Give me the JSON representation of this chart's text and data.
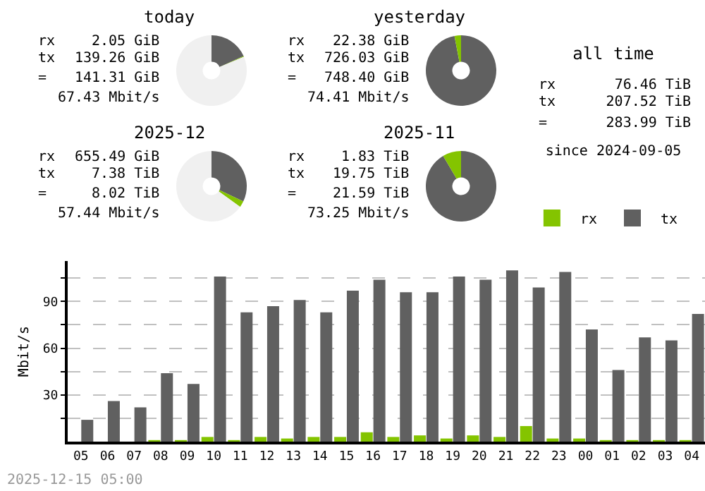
{
  "chart_data": [
    {
      "type": "donut",
      "title": "today",
      "categories": [
        null,
        null,
        null
      ],
      "values": [
        18.3,
        0.3,
        81.4
      ],
      "colors": [
        "#606060",
        "#84c400",
        "#f0f0f0"
      ],
      "annotations": [
        "rx",
        "2.05 GiB",
        "tx",
        "139.26 GiB",
        "=",
        "141.31 GiB",
        "67.43 Mbit/s"
      ]
    },
    {
      "type": "donut",
      "title": "yesterday",
      "categories": [
        null,
        null,
        null
      ],
      "values": [
        97,
        3,
        0
      ],
      "colors": [
        "#606060",
        "#84c400",
        "#f0f0f0"
      ],
      "annotations": [
        "rx",
        "22.38 GiB",
        "tx",
        "726.03 GiB",
        "=",
        "748.40 GiB",
        "74.41 Mbit/s"
      ]
    },
    {
      "type": "other",
      "title": "all time",
      "annotations": [
        "rx",
        "76.46 TiB",
        "tx",
        "207.52 TiB",
        "=",
        "283.99 TiB",
        "since 2024-09-05"
      ]
    },
    {
      "type": "donut",
      "title": "2025-12",
      "categories": [
        null,
        null,
        null
      ],
      "values": [
        32.1,
        2.8,
        65.1
      ],
      "colors": [
        "#606060",
        "#84c400",
        "#f0f0f0"
      ],
      "annotations": [
        "rx",
        "655.49 GiB",
        "tx",
        "7.38 TiB",
        "=",
        "8.02 TiB",
        "57.44 Mbit/s"
      ]
    },
    {
      "type": "donut",
      "title": "2025-11",
      "categories": [
        null,
        null,
        null
      ],
      "values": [
        91.5,
        8.5,
        0
      ],
      "colors": [
        "#606060",
        "#84c400",
        "#f0f0f0"
      ],
      "annotations": [
        "rx",
        "1.83 TiB",
        "tx",
        "19.75 TiB",
        "=",
        "21.59 TiB",
        "73.25 Mbit/s"
      ]
    },
    {
      "type": "bar",
      "ylabel": "Mbit/s",
      "categories": [
        "05",
        "06",
        "07",
        "08",
        "09",
        "10",
        "11",
        "12",
        "13",
        "14",
        "15",
        "16",
        "17",
        "18",
        "19",
        "20",
        "21",
        "22",
        "23",
        "00",
        "01",
        "02",
        "03",
        "04"
      ],
      "series": [
        {
          "name": "rx",
          "color": "#84c400",
          "values": [
            0,
            0,
            0,
            1,
            1,
            3,
            1,
            3,
            2,
            3,
            3,
            6,
            3,
            4,
            2,
            4,
            3,
            10,
            2,
            2,
            1,
            1,
            1,
            1
          ]
        },
        {
          "name": "tx",
          "color": "#606060",
          "values": [
            14,
            26,
            22,
            44,
            37,
            106,
            83,
            87,
            91,
            83,
            97,
            104,
            96,
            96,
            106,
            104,
            110,
            99,
            109,
            72,
            46,
            67,
            65,
            82
          ]
        }
      ],
      "ylim": [
        0,
        116
      ],
      "yticks": [
        {
          "value": 15,
          "label": null
        },
        30,
        {
          "value": 45,
          "label": null
        },
        60,
        {
          "value": 75,
          "label": null
        },
        90,
        {
          "value": 105,
          "label": null
        }
      ],
      "grid": "y",
      "legend": "top right",
      "annotations": [
        "2025-12-15 05:00"
      ]
    }
  ]
}
